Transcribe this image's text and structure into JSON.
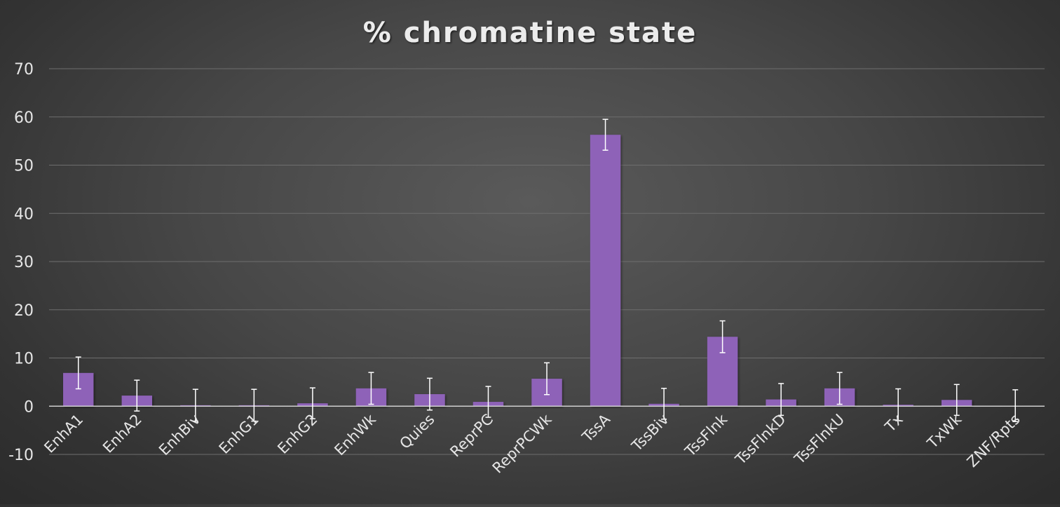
{
  "chart_data": {
    "type": "bar",
    "title": "% chromatine state",
    "xlabel": "",
    "ylabel": "",
    "ylim": [
      -10,
      70
    ],
    "yticks": [
      -10,
      0,
      10,
      20,
      30,
      40,
      50,
      60,
      70
    ],
    "grid": true,
    "legend": "none",
    "categories": [
      "EnhA1",
      "EnhA2",
      "EnhBiv",
      "EnhG1",
      "EnhG2",
      "EnhWk",
      "Quies",
      "ReprPC",
      "ReprPCWk",
      "TssA",
      "TssBiv",
      "TssFlnk",
      "TssFlnkD",
      "TssFlnkU",
      "Tx",
      "TxWk",
      "ZNF/Rpts"
    ],
    "values": [
      6.9,
      2.2,
      0.2,
      0.2,
      0.6,
      3.7,
      2.5,
      0.9,
      5.7,
      56.3,
      0.5,
      14.4,
      1.4,
      3.7,
      0.3,
      1.3,
      0.1
    ],
    "error": [
      3.3,
      3.2,
      3.3,
      3.3,
      3.2,
      3.3,
      3.3,
      3.2,
      3.3,
      3.2,
      3.2,
      3.3,
      3.3,
      3.3,
      3.3,
      3.2,
      3.3
    ],
    "colors": {
      "bar": "#8e62b8",
      "grid": "#6e6e6e",
      "zero_line": "#cfcfcf",
      "text": "#e6e6e6",
      "error_bar": "#ffffff"
    }
  }
}
